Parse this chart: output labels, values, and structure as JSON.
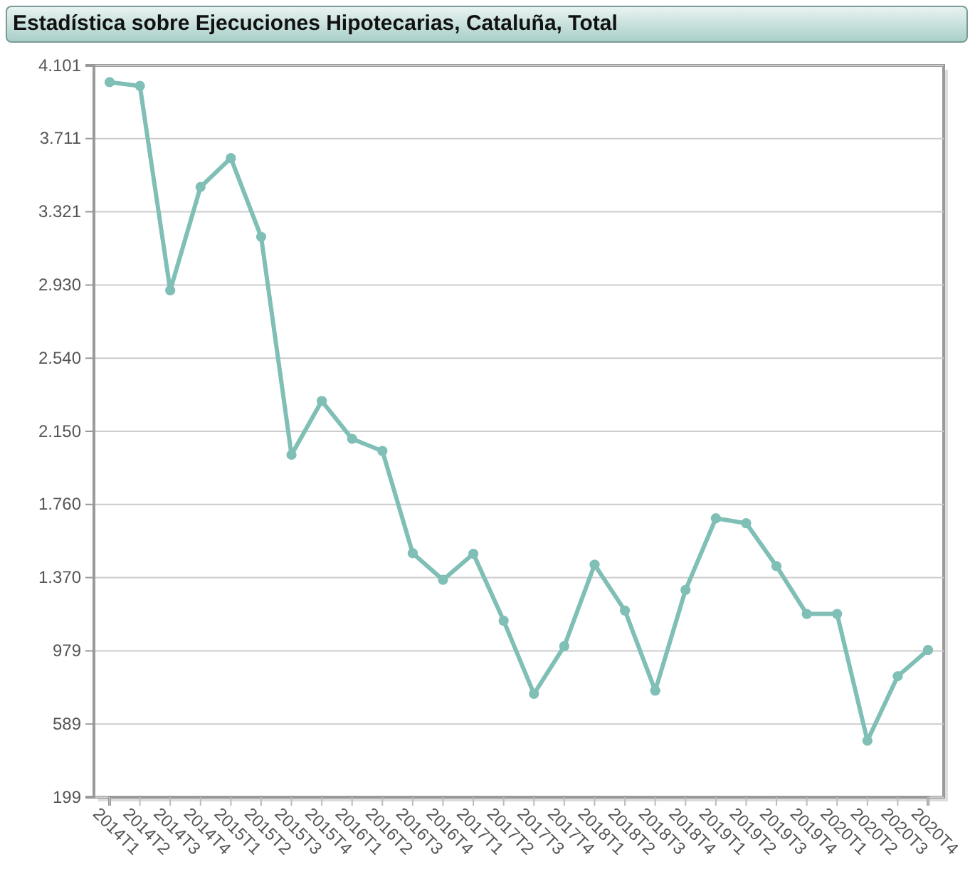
{
  "chart_data": {
    "type": "line",
    "title": "Estadística sobre Ejecuciones Hipotecarias, Cataluña, Total",
    "categories": [
      "2014T1",
      "2014T2",
      "2014T3",
      "2014T4",
      "2015T1",
      "2015T2",
      "2015T3",
      "2015T4",
      "2016T1",
      "2016T2",
      "2016T3",
      "2016T4",
      "2017T1",
      "2017T2",
      "2017T3",
      "2017T4",
      "2018T1",
      "2018T2",
      "2018T3",
      "2018T4",
      "2019T1",
      "2019T2",
      "2019T3",
      "2019T4",
      "2020T1",
      "2020T2",
      "2020T3",
      "2020T4"
    ],
    "series": [
      {
        "color": "#7fbfb6",
        "values": [
          4012,
          3992,
          2902,
          3453,
          3607,
          3187,
          2025,
          2312,
          2110,
          2045,
          1500,
          1358,
          1497,
          1140,
          750,
          1004,
          1439,
          1194,
          767,
          1304,
          1686,
          1660,
          1431,
          1176,
          1176,
          500,
          844,
          984
        ]
      }
    ],
    "ylim": [
      199,
      4101
    ],
    "yticks": [
      {
        "value": 199,
        "label": "199"
      },
      {
        "value": 589,
        "label": "589"
      },
      {
        "value": 979,
        "label": "979"
      },
      {
        "value": 1370,
        "label": "1.370"
      },
      {
        "value": 1760,
        "label": "1.760"
      },
      {
        "value": 2150,
        "label": "2.150"
      },
      {
        "value": 2540,
        "label": "2.540"
      },
      {
        "value": 2930,
        "label": "2.930"
      },
      {
        "value": 3321,
        "label": "3.321"
      },
      {
        "value": 3711,
        "label": "3.711"
      },
      {
        "value": 4101,
        "label": "4.101"
      }
    ],
    "grid": "y",
    "marker": "circle",
    "line_style": "solid"
  }
}
